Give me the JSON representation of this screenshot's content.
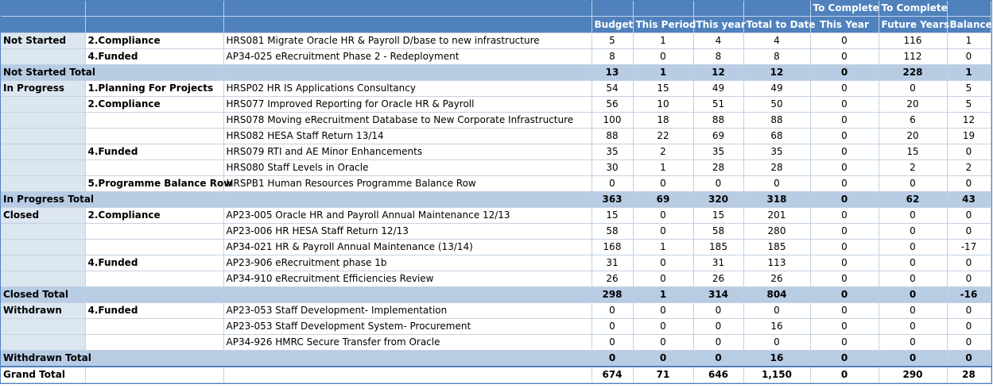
{
  "headers": {
    "budget": "Budget",
    "this_period": "This Period",
    "this_year": "This year",
    "total_to_date": "Total to Date",
    "complete_this_year_top": "To Complete",
    "complete_this_year_bottom": "This Year",
    "complete_future_top": "To Complete",
    "complete_future_bottom": "Future Years",
    "balance": "Balance"
  },
  "rows": [
    {
      "type": "item",
      "status": "Not Started",
      "category": "2.Compliance",
      "project": "HRS081 Migrate Oracle HR & Payroll D/base to new infrastructure",
      "budget": "5",
      "this_period": "1",
      "this_year": "4",
      "total_to_date": "4",
      "complete_this_year": "0",
      "complete_future": "116",
      "balance": "1"
    },
    {
      "type": "item",
      "status": "",
      "category": "4.Funded",
      "project": "AP34-025 eRecruitment Phase 2 - Redeployment",
      "budget": "8",
      "this_period": "0",
      "this_year": "8",
      "total_to_date": "8",
      "complete_this_year": "0",
      "complete_future": "112",
      "balance": "0"
    },
    {
      "type": "total",
      "status": "Not Started Total",
      "category": "",
      "project": "",
      "budget": "13",
      "this_period": "1",
      "this_year": "12",
      "total_to_date": "12",
      "complete_this_year": "0",
      "complete_future": "228",
      "balance": "1"
    },
    {
      "type": "item",
      "status": "In Progress",
      "category": "1.Planning For Projects",
      "project": "HRSP02 HR IS Applications Consultancy",
      "budget": "54",
      "this_period": "15",
      "this_year": "49",
      "total_to_date": "49",
      "complete_this_year": "0",
      "complete_future": "0",
      "balance": "5"
    },
    {
      "type": "item",
      "status": "",
      "category": "2.Compliance",
      "project": "HRS077 Improved Reporting for Oracle HR & Payroll",
      "budget": "56",
      "this_period": "10",
      "this_year": "51",
      "total_to_date": "50",
      "complete_this_year": "0",
      "complete_future": "20",
      "balance": "5"
    },
    {
      "type": "item",
      "status": "",
      "category": "",
      "project": "HRS078 Moving eRecruitment Database to New Corporate Infrastructure",
      "budget": "100",
      "this_period": "18",
      "this_year": "88",
      "total_to_date": "88",
      "complete_this_year": "0",
      "complete_future": "6",
      "balance": "12"
    },
    {
      "type": "item",
      "status": "",
      "category": "",
      "project": "HRS082 HESA Staff Return 13/14",
      "budget": "88",
      "this_period": "22",
      "this_year": "69",
      "total_to_date": "68",
      "complete_this_year": "0",
      "complete_future": "20",
      "balance": "19"
    },
    {
      "type": "item",
      "status": "",
      "category": "4.Funded",
      "project": "HRS079 RTI and AE Minor Enhancements",
      "budget": "35",
      "this_period": "2",
      "this_year": "35",
      "total_to_date": "35",
      "complete_this_year": "0",
      "complete_future": "15",
      "balance": "0"
    },
    {
      "type": "item",
      "status": "",
      "category": "",
      "project": "HRS080 Staff Levels in Oracle",
      "budget": "30",
      "this_period": "1",
      "this_year": "28",
      "total_to_date": "28",
      "complete_this_year": "0",
      "complete_future": "2",
      "balance": "2"
    },
    {
      "type": "item",
      "status": "",
      "category": "5.Programme Balance Row",
      "project": "HRSPB1 Human Resources Programme Balance Row",
      "budget": "0",
      "this_period": "0",
      "this_year": "0",
      "total_to_date": "0",
      "complete_this_year": "0",
      "complete_future": "0",
      "balance": "0"
    },
    {
      "type": "total",
      "status": "In Progress Total",
      "category": "",
      "project": "",
      "budget": "363",
      "this_period": "69",
      "this_year": "320",
      "total_to_date": "318",
      "complete_this_year": "0",
      "complete_future": "62",
      "balance": "43"
    },
    {
      "type": "item",
      "status": "Closed",
      "category": "2.Compliance",
      "project": "AP23-005 Oracle HR and Payroll Annual Maintenance 12/13",
      "budget": "15",
      "this_period": "0",
      "this_year": "15",
      "total_to_date": "201",
      "complete_this_year": "0",
      "complete_future": "0",
      "balance": "0"
    },
    {
      "type": "item",
      "status": "",
      "category": "",
      "project": "AP23-006 HR HESA Staff Return 12/13",
      "budget": "58",
      "this_period": "0",
      "this_year": "58",
      "total_to_date": "280",
      "complete_this_year": "0",
      "complete_future": "0",
      "balance": "0"
    },
    {
      "type": "item",
      "status": "",
      "category": "",
      "project": "AP34-021 HR & Payroll Annual Maintenance (13/14)",
      "budget": "168",
      "this_period": "1",
      "this_year": "185",
      "total_to_date": "185",
      "complete_this_year": "0",
      "complete_future": "0",
      "balance": "-17"
    },
    {
      "type": "item",
      "status": "",
      "category": "4.Funded",
      "project": "AP23-906 eRecruitment phase 1b",
      "budget": "31",
      "this_period": "0",
      "this_year": "31",
      "total_to_date": "113",
      "complete_this_year": "0",
      "complete_future": "0",
      "balance": "0"
    },
    {
      "type": "item",
      "status": "",
      "category": "",
      "project": "AP34-910 eRecruitment Efficiencies Review",
      "budget": "26",
      "this_period": "0",
      "this_year": "26",
      "total_to_date": "26",
      "complete_this_year": "0",
      "complete_future": "0",
      "balance": "0"
    },
    {
      "type": "total",
      "status": "Closed Total",
      "category": "",
      "project": "",
      "budget": "298",
      "this_period": "1",
      "this_year": "314",
      "total_to_date": "804",
      "complete_this_year": "0",
      "complete_future": "0",
      "balance": "-16"
    },
    {
      "type": "item",
      "status": "Withdrawn",
      "category": "4.Funded",
      "project": "AP23-053 Staff Development- Implementation",
      "budget": "0",
      "this_period": "0",
      "this_year": "0",
      "total_to_date": "0",
      "complete_this_year": "0",
      "complete_future": "0",
      "balance": "0"
    },
    {
      "type": "item",
      "status": "",
      "category": "",
      "project": "AP23-053 Staff Development System- Procurement",
      "budget": "0",
      "this_period": "0",
      "this_year": "0",
      "total_to_date": "16",
      "complete_this_year": "0",
      "complete_future": "0",
      "balance": "0"
    },
    {
      "type": "item",
      "status": "",
      "category": "",
      "project": "AP34-926 HMRC Secure Transfer from Oracle",
      "budget": "0",
      "this_period": "0",
      "this_year": "0",
      "total_to_date": "0",
      "complete_this_year": "0",
      "complete_future": "0",
      "balance": "0"
    },
    {
      "type": "total",
      "status": "Withdrawn Total",
      "category": "",
      "project": "",
      "budget": "0",
      "this_period": "0",
      "this_year": "0",
      "total_to_date": "16",
      "complete_this_year": "0",
      "complete_future": "0",
      "balance": "0"
    },
    {
      "type": "grand",
      "status": "Grand Total",
      "category": "",
      "project": "",
      "budget": "674",
      "this_period": "71",
      "this_year": "646",
      "total_to_date": "1,150",
      "complete_this_year": "0",
      "complete_future": "290",
      "balance": "28"
    }
  ]
}
